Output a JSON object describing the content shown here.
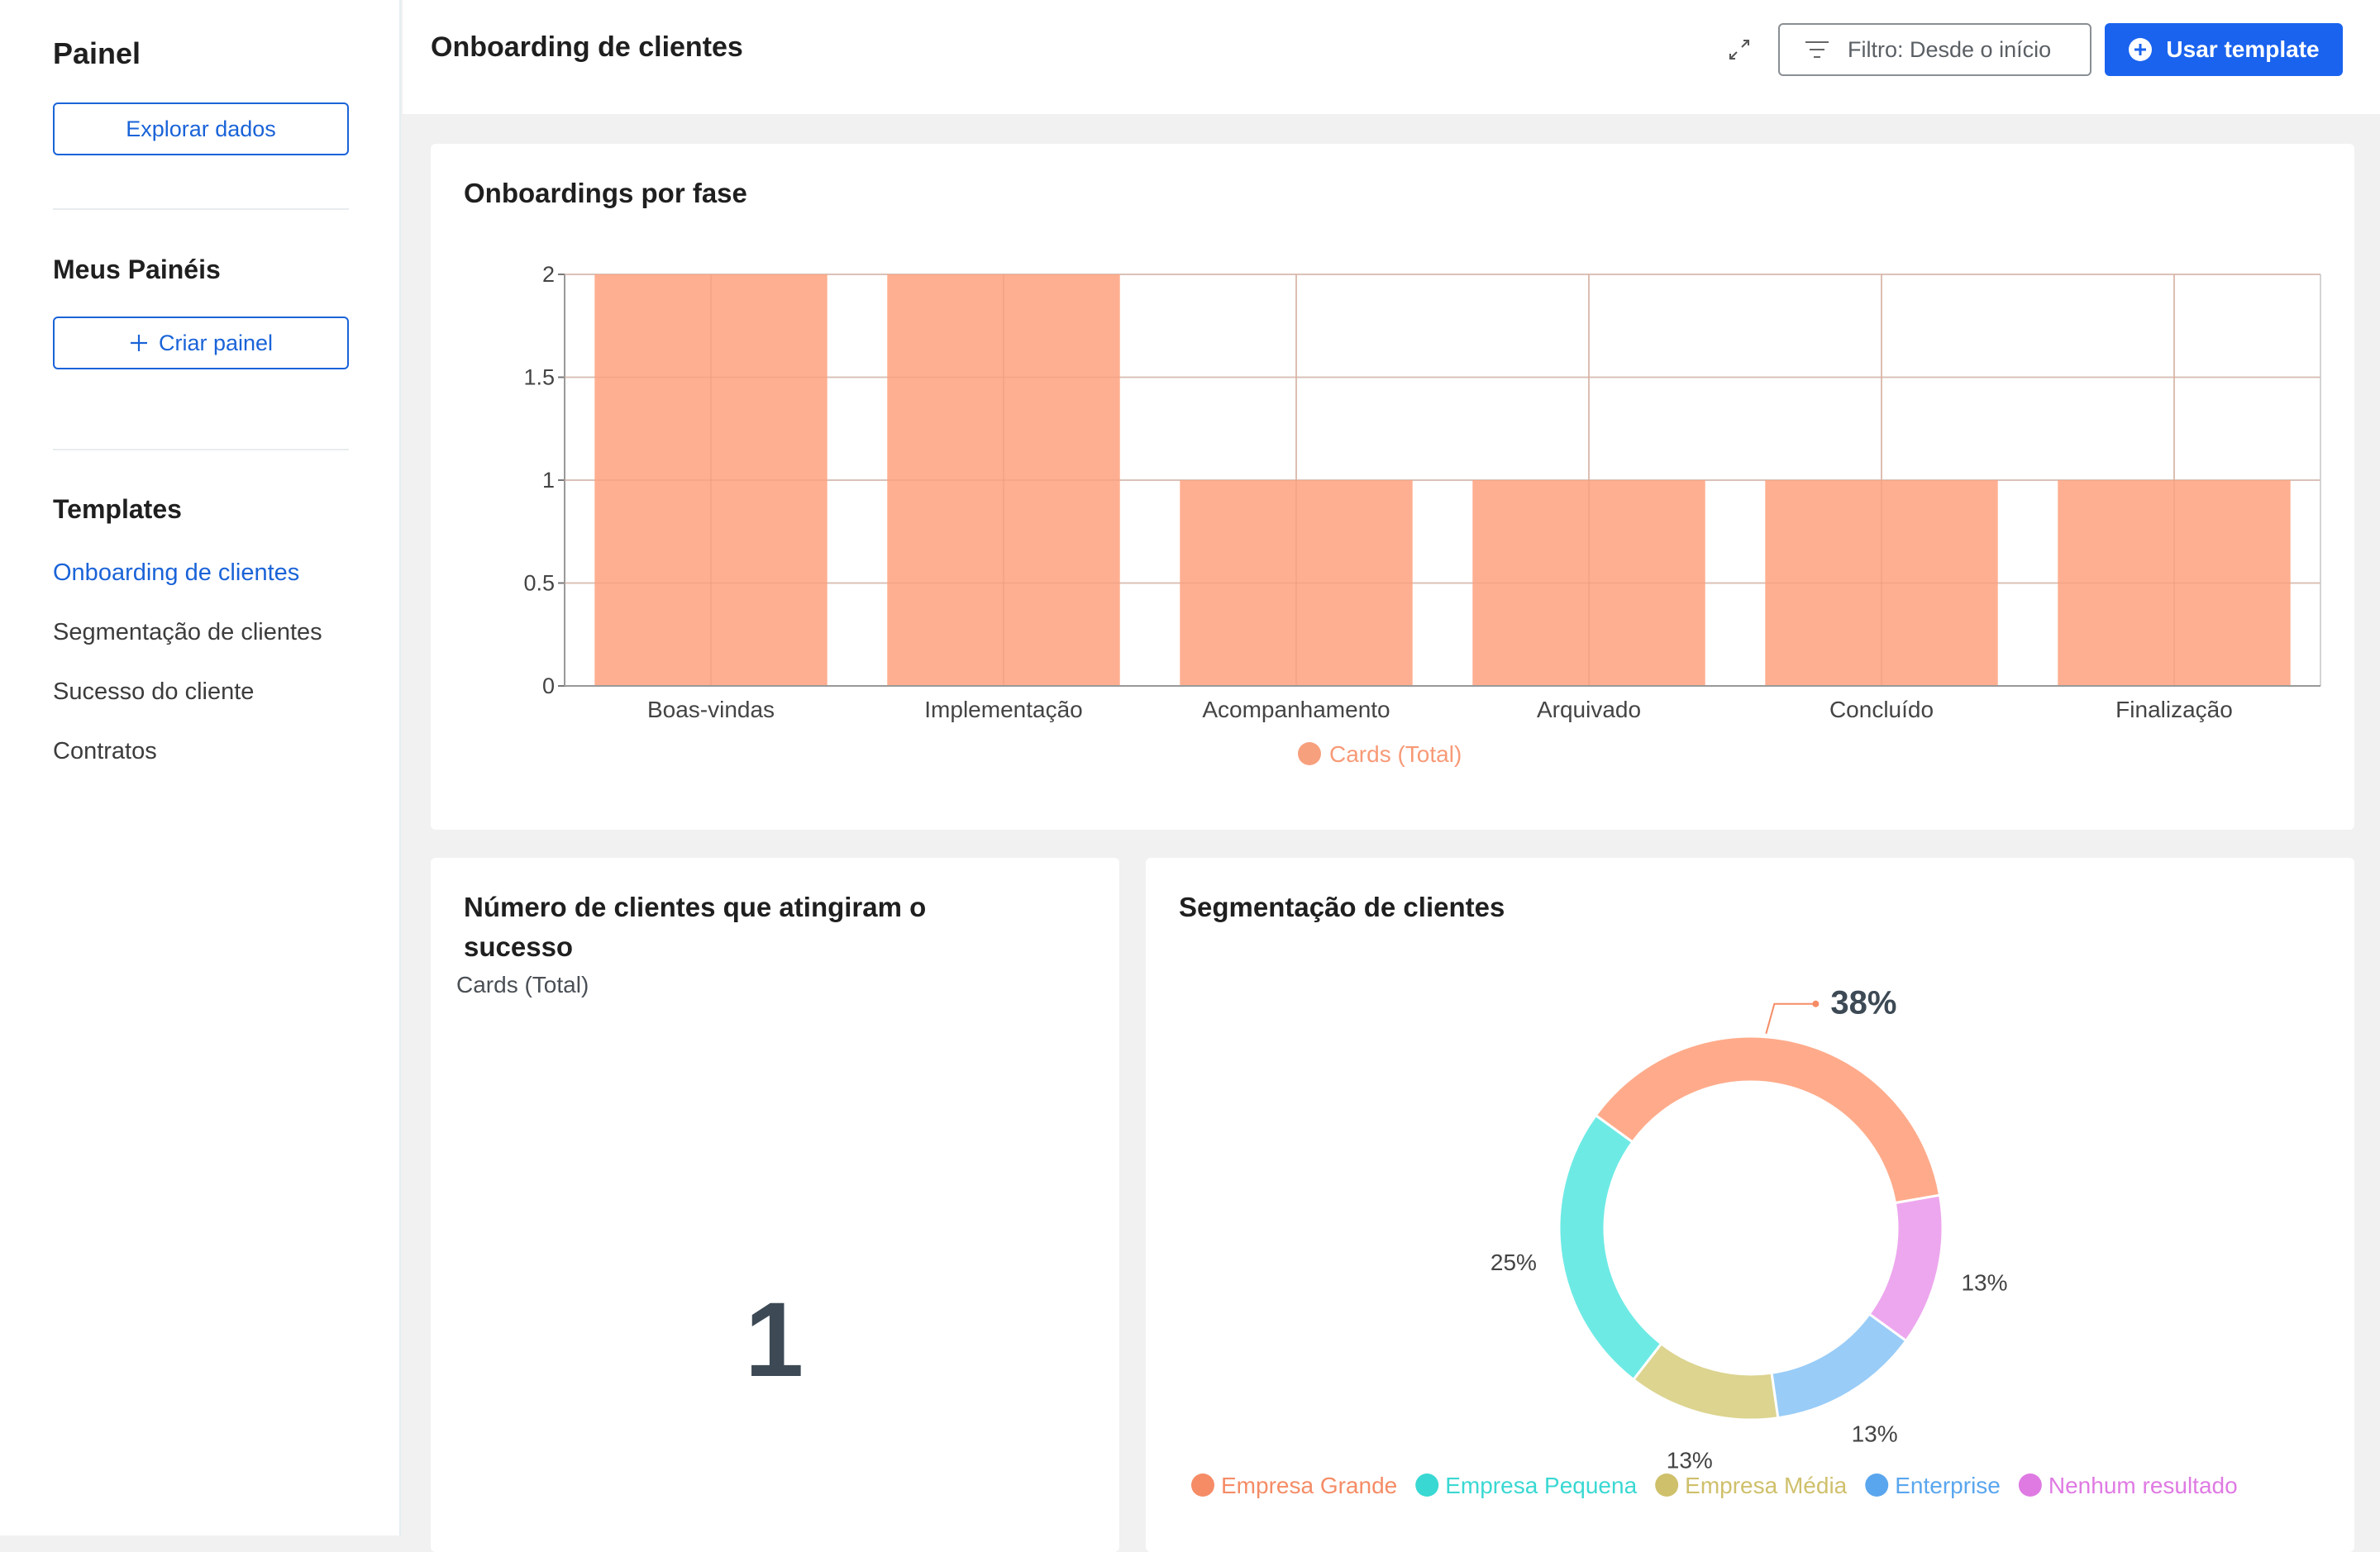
{
  "sidebar": {
    "title": "Painel",
    "explore_label": "Explorar dados",
    "my_panels_title": "Meus Painéis",
    "create_label": "Criar painel",
    "templates_title": "Templates",
    "templates": [
      {
        "label": "Onboarding de clientes",
        "active": true
      },
      {
        "label": "Segmentação de clientes",
        "active": false
      },
      {
        "label": "Sucesso do cliente",
        "active": false
      },
      {
        "label": "Contratos",
        "active": false
      }
    ]
  },
  "header": {
    "title": "Onboarding de clientes",
    "filter_label": "Filtro: Desde o início",
    "use_template_label": "Usar template"
  },
  "icons": {
    "expand": "expand-icon",
    "filter": "filter-icon",
    "plus_circle": "plus-circle-icon",
    "plus": "plus-icon"
  },
  "colors": {
    "accent": "#1a63ee",
    "bar": "#ffab8b",
    "text_dark": "#3d4a55"
  },
  "cards": {
    "bar": {
      "title": "Onboardings por fase"
    },
    "kpi": {
      "title_line1": "Número de clientes que atingiram o",
      "title_line2": "sucesso",
      "subtitle": "Cards (Total)",
      "value": "1"
    },
    "donut": {
      "title": "Segmentação de clientes"
    }
  },
  "chart_data": [
    {
      "type": "bar",
      "title": "Onboardings por fase",
      "categories": [
        "Boas-vindas",
        "Implementação",
        "Acompanhamento",
        "Arquivado",
        "Concluído",
        "Finalização"
      ],
      "series": [
        {
          "name": "Cards (Total)",
          "values": [
            2,
            2,
            1,
            1,
            1,
            1
          ],
          "color": "#ffab8b"
        }
      ],
      "ylim": [
        0,
        2
      ],
      "yticks": [
        "0",
        "0.5",
        "1",
        "1.5",
        "2"
      ],
      "grid": true,
      "legend": "bottom-center"
    },
    {
      "type": "pie",
      "title": "Segmentação de clientes",
      "donut": true,
      "slices": [
        {
          "name": "Empresa Grande",
          "value": 38,
          "label": "38%",
          "color": "#ffab8b"
        },
        {
          "name": "Nenhum resultado",
          "value": 13,
          "label": "13%",
          "color": "#eda7ee"
        },
        {
          "name": "Enterprise",
          "value": 13,
          "label": "13%",
          "color": "#99ccf7"
        },
        {
          "name": "Empresa Média",
          "value": 13,
          "label": "13%",
          "color": "#dcd48f"
        },
        {
          "name": "Empresa Pequena",
          "value": 25,
          "label": "25%",
          "color": "#6eeae5"
        }
      ],
      "legend_order": [
        "Empresa Grande",
        "Empresa Pequena",
        "Empresa Média",
        "Enterprise",
        "Nenhum resultado"
      ],
      "legend_colors": {
        "Empresa Grande": "#f58c66",
        "Empresa Pequena": "#3ad8d2",
        "Empresa Média": "#cfc06b",
        "Enterprise": "#5aa6ee",
        "Nenhum resultado": "#df7ae3"
      },
      "legend": "bottom"
    }
  ]
}
